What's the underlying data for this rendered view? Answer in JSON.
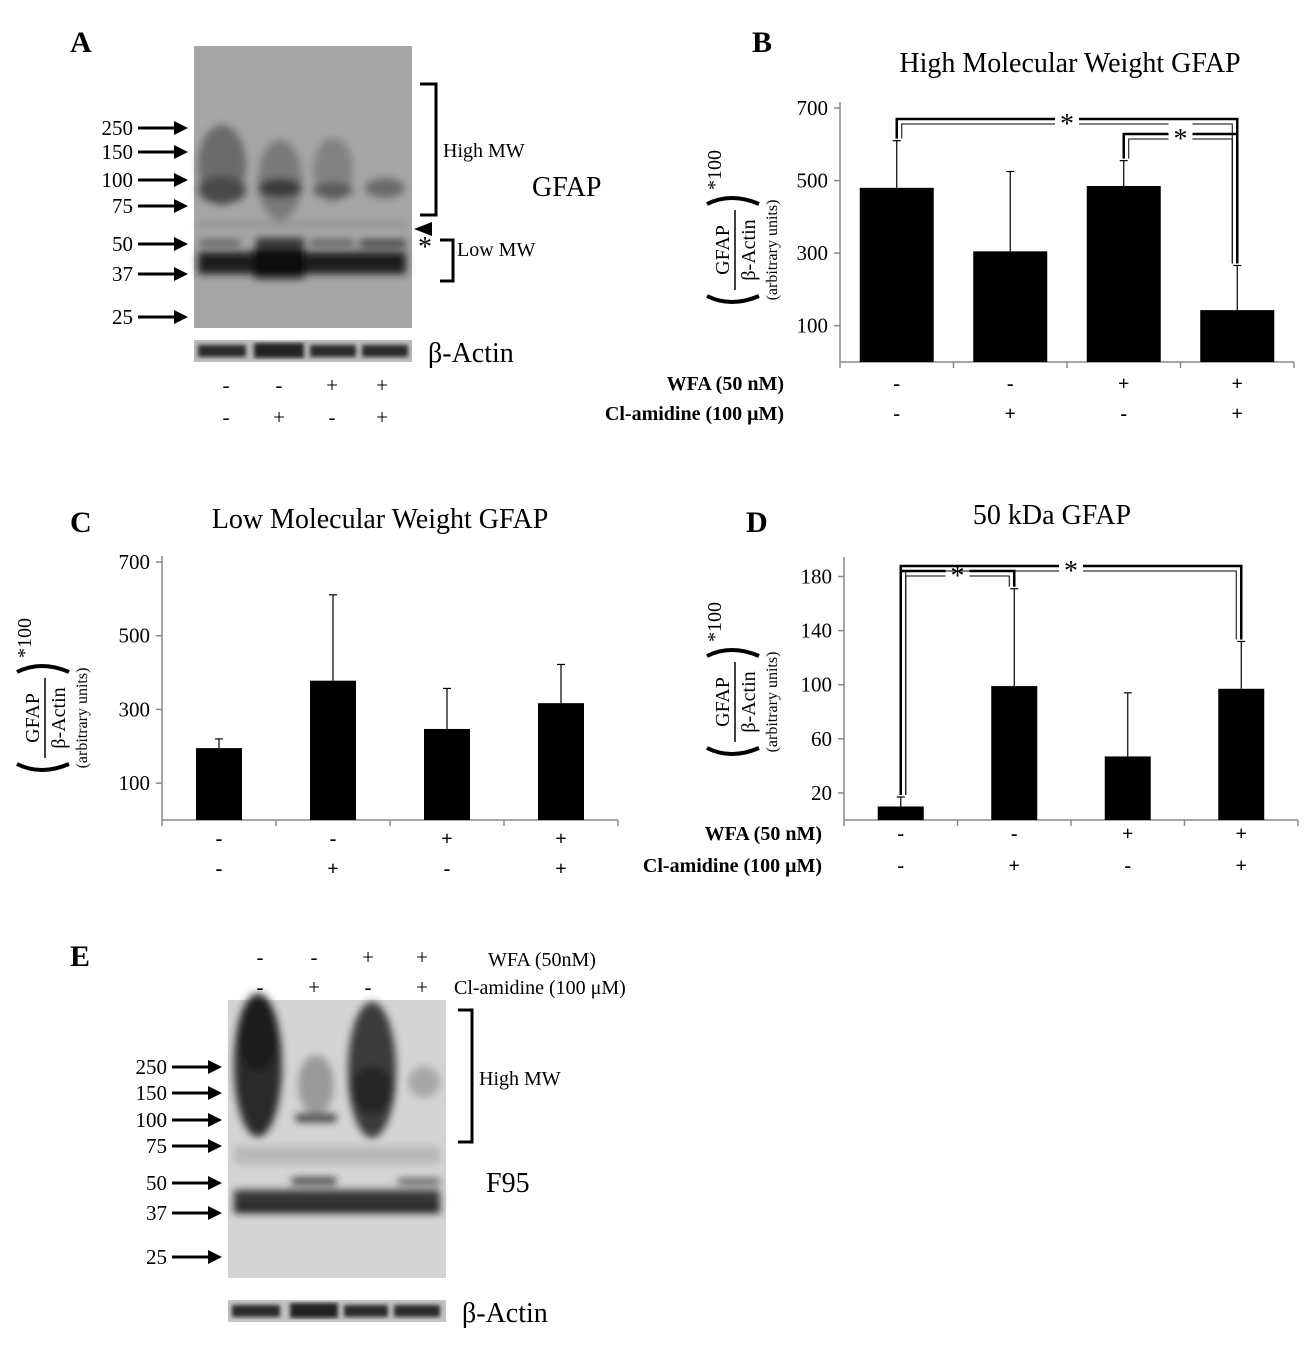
{
  "panels": {
    "A": {
      "label": "A",
      "markers": [
        "250",
        "150",
        "100",
        "75",
        "50",
        "37",
        "25"
      ],
      "bracket_high": "High MW",
      "bracket_low": "Low MW",
      "asterisk": "*",
      "protein": "GFAP",
      "loading": "β-Actin",
      "row1": [
        "-",
        "-",
        "+",
        "+"
      ],
      "row2": [
        "-",
        "+",
        "-",
        "+"
      ]
    },
    "E": {
      "label": "E",
      "markers": [
        "250",
        "150",
        "100",
        "75",
        "50",
        "37",
        "25"
      ],
      "bracket_high": "High MW",
      "protein": "F95",
      "loading": "β-Actin",
      "row1": [
        "-",
        "-",
        "+",
        "+"
      ],
      "row2": [
        "-",
        "+",
        "-",
        "+"
      ],
      "row1_label": "WFA  (50nM)",
      "row2_label": "Cl-amidine (100 μM)"
    }
  },
  "chart_data": [
    {
      "panel": "B",
      "type": "bar",
      "title": "High Molecular Weight GFAP",
      "ylabel_numerator": "GFAP",
      "ylabel_denominator": "β-Actin",
      "ylabel_suffix": "*100",
      "ylabel_units": "(arbitrary units)",
      "yticks": [
        "100",
        "300",
        "500",
        "700"
      ],
      "ylim": [
        0,
        700
      ],
      "values": [
        480,
        305,
        485,
        143
      ],
      "errors": [
        130,
        220,
        70,
        123
      ],
      "row1": [
        "-",
        "-",
        "+",
        "+"
      ],
      "row2": [
        "-",
        "+",
        "-",
        "+"
      ],
      "row1_label": "WFA (50 nM)",
      "row2_label": "Cl-amidine (100 μM)",
      "significance": [
        {
          "from": 0,
          "to": 3,
          "label": "*"
        },
        {
          "from": 2,
          "to": 3,
          "label": "*"
        }
      ]
    },
    {
      "panel": "C",
      "type": "bar",
      "title": "Low Molecular Weight GFAP",
      "ylabel_numerator": "GFAP",
      "ylabel_denominator": "β-Actin",
      "ylabel_suffix": "*100",
      "ylabel_units": "(arbitrary units)",
      "yticks": [
        "100",
        "300",
        "500",
        "700"
      ],
      "ylim": [
        0,
        700
      ],
      "values": [
        195,
        378,
        247,
        317
      ],
      "errors": [
        25,
        233,
        110,
        105
      ],
      "row1": [
        "-",
        "-",
        "+",
        "+"
      ],
      "row2": [
        "-",
        "+",
        "-",
        "+"
      ],
      "row1_label": "WFA (50 nM)",
      "row2_label": "Cl-amidine (100 μM)",
      "significance": []
    },
    {
      "panel": "D",
      "type": "bar",
      "title": "50 kDa GFAP",
      "ylabel_numerator": "GFAP",
      "ylabel_denominator": "β-Actin",
      "ylabel_suffix": "*100",
      "ylabel_units": "(arbitrary units)",
      "yticks": [
        "20",
        "60",
        "100",
        "140",
        "180"
      ],
      "ylim": [
        0,
        190
      ],
      "values": [
        10,
        99,
        47,
        97
      ],
      "errors": [
        7,
        72,
        47,
        35
      ],
      "row1": [
        "-",
        "-",
        "+",
        "+"
      ],
      "row2": [
        "-",
        "+",
        "-",
        "+"
      ],
      "row1_label": "WFA (50 nM)",
      "row2_label": "Cl-amidine (100 μM)",
      "significance": [
        {
          "from": 0,
          "to": 1,
          "label": "*"
        },
        {
          "from": 0,
          "to": 3,
          "label": "*"
        }
      ]
    }
  ]
}
